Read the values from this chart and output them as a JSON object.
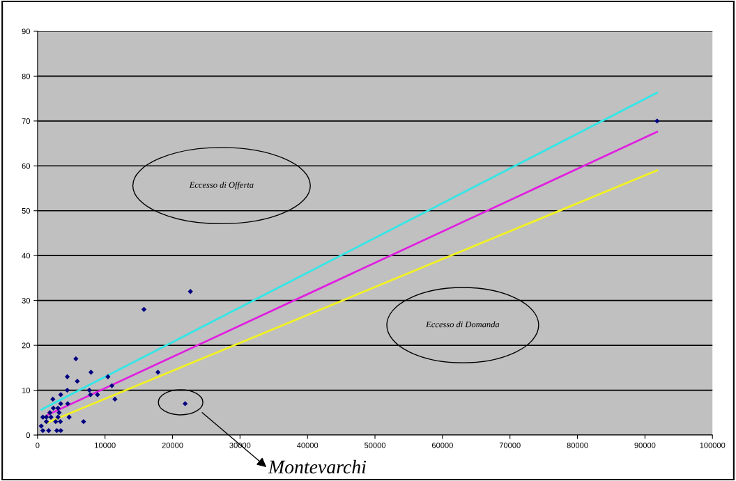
{
  "chart_data": {
    "type": "scatter",
    "series": [
      {
        "color": "#000080",
        "marker": "diamond",
        "x": [
          5680,
          7920,
          4410,
          10430,
          5890,
          11020,
          4410,
          7680,
          7850,
          8880,
          3440,
          2270,
          11470,
          3440,
          4470,
          2340,
          3030,
          1830,
          3200,
          790,
          1310,
          1990,
          3030,
          4680,
          1310,
          2690,
          3380,
          6820,
          550,
          790,
          1650,
          2860,
          3440,
          17840,
          21870,
          15770,
          22650,
          91800
        ],
        "values": [
          17,
          14,
          13,
          13,
          12,
          11,
          10,
          10,
          9,
          9,
          9,
          8,
          8,
          7,
          7,
          6,
          6,
          5,
          5,
          4,
          4,
          4,
          4,
          4,
          3,
          3,
          3,
          3,
          2,
          1,
          1,
          1,
          1,
          14,
          7,
          28,
          32,
          70
        ]
      },
      {
        "type": "line",
        "color": "#33e6e6",
        "marker": "none",
        "x": [
          600,
          91800
        ],
        "values": [
          5.7,
          76.3
        ]
      },
      {
        "type": "line",
        "color": "#e020e0",
        "marker": "none",
        "x": [
          1500,
          91800
        ],
        "values": [
          4.5,
          67.6
        ]
      },
      {
        "type": "line",
        "color": "#f2f222",
        "marker": "none",
        "x": [
          1500,
          91800
        ],
        "values": [
          2.8,
          59.0
        ]
      }
    ],
    "xlim": [
      0,
      100000
    ],
    "xticks": [
      0,
      10000,
      20000,
      30000,
      40000,
      50000,
      60000,
      70000,
      80000,
      90000,
      100000
    ],
    "ylim": [
      0,
      90
    ],
    "yticks": [
      0,
      10,
      20,
      30,
      40,
      50,
      60,
      70,
      80,
      90
    ],
    "grid": "y",
    "annotations": [
      "Eccesso di Offerta",
      "Eccesso di Domanda",
      "Montevarchi"
    ]
  }
}
